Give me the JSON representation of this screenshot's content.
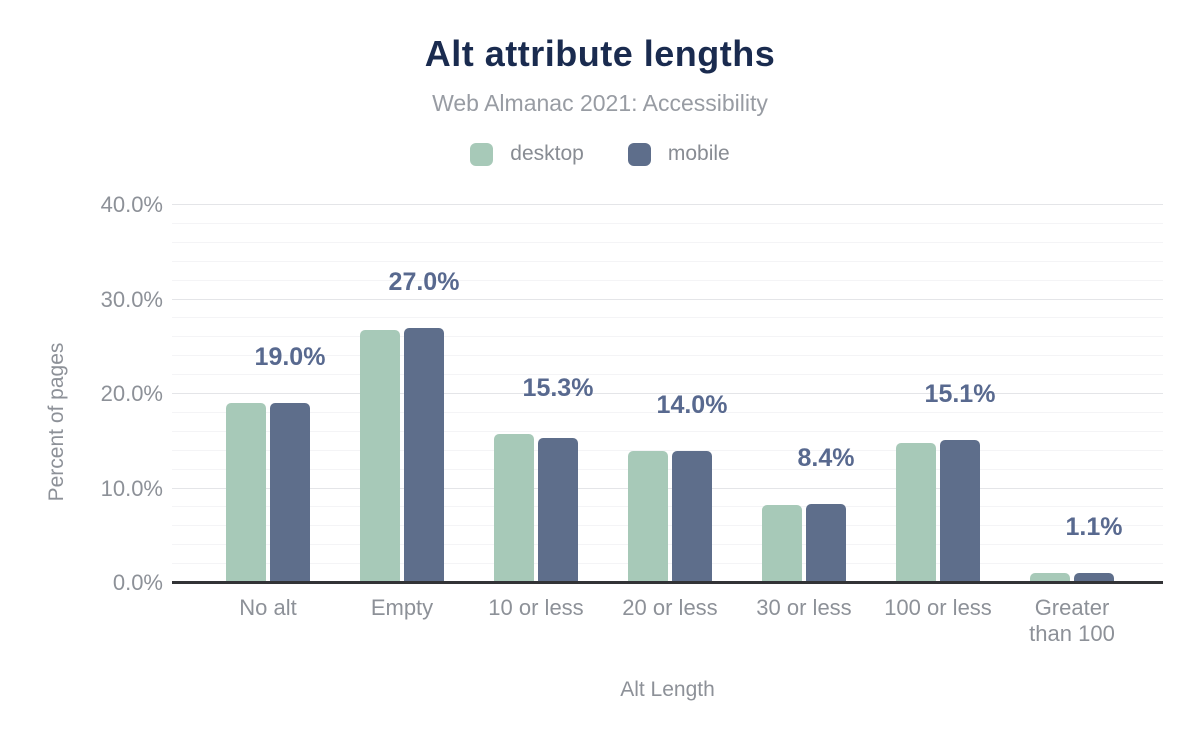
{
  "chart": {
    "title": "Alt attribute lengths",
    "subtitle": "Web Almanac 2021: Accessibility",
    "xlabel": "Alt Length",
    "ylabel": "Percent of pages"
  },
  "colors": {
    "desktop_bar": "#a7c9b8",
    "mobile_bar": "#5e6e8b",
    "title_text": "#1a2b4f",
    "muted_text": "#8d9198",
    "data_label_text": "#58698f",
    "axis_line": "#323336",
    "grid_major": "#e4e5e8",
    "grid_minor": "#f4f4f6"
  },
  "chart_data": {
    "type": "bar",
    "title": "Alt attribute lengths",
    "subtitle": "Web Almanac 2021: Accessibility",
    "xlabel": "Alt Length",
    "ylabel": "Percent of pages",
    "categories": [
      "No alt",
      "Empty",
      "10 or less",
      "20 or less",
      "30 or less",
      "100 or less",
      "Greater than 100"
    ],
    "xtick_labels": [
      "No alt",
      "Empty",
      "10 or less",
      "20 or less",
      "30 or less",
      "100 or less",
      "Greater\nthan 100"
    ],
    "series": [
      {
        "name": "desktop",
        "color": "#a7c9b8",
        "values": [
          19.0,
          26.8,
          15.8,
          14.0,
          8.3,
          14.8,
          1.1
        ]
      },
      {
        "name": "mobile",
        "color": "#5e6e8b",
        "values": [
          19.0,
          27.0,
          15.3,
          14.0,
          8.4,
          15.1,
          1.1
        ]
      }
    ],
    "data_labels": [
      "19.0%",
      "27.0%",
      "15.3%",
      "14.0%",
      "8.4%",
      "15.1%",
      "1.1%"
    ],
    "data_labels_series": "mobile",
    "ylim": [
      0,
      40
    ],
    "yticks": [
      {
        "value": 0,
        "label": "0.0%"
      },
      {
        "value": 10,
        "label": "10.0%"
      },
      {
        "value": 20,
        "label": "20.0%"
      },
      {
        "value": 30,
        "label": "30.0%"
      },
      {
        "value": 40,
        "label": "40.0%"
      }
    ],
    "grid": {
      "minor_step": 2,
      "major_step": 10,
      "visible": true
    },
    "legend_position": "top"
  }
}
